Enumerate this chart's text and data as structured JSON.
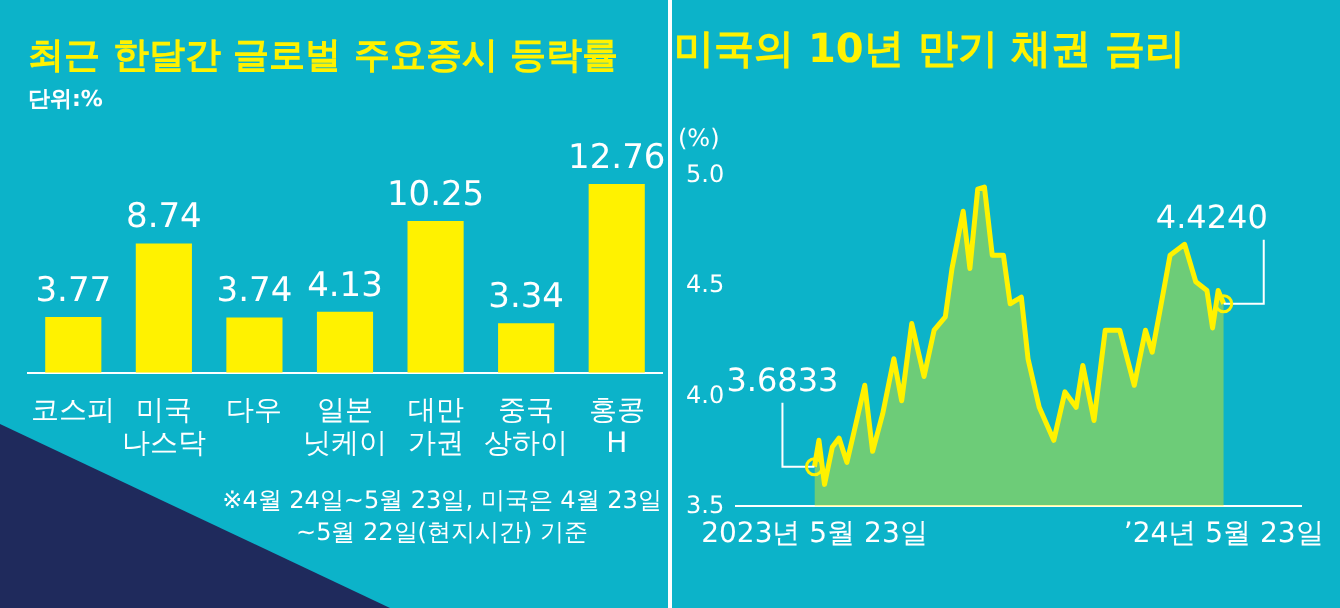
{
  "chart_data": [
    {
      "type": "bar",
      "title": "최근 한달간 글로벌 주요증시 등락률",
      "subtitle": "단위:%",
      "categories": [
        "코스피",
        "미국 나스닥",
        "다우",
        "일본 닛케이",
        "대만 가권",
        "중국 상하이",
        "홍콩 H"
      ],
      "values": [
        3.77,
        8.74,
        3.74,
        4.13,
        10.25,
        3.34,
        12.76
      ],
      "color": "#fff200",
      "data_labels": true,
      "annotations": [
        "※4월 24일~5월 23일, 미국은 4월 23일~5월 22일(현지시간) 기준"
      ]
    },
    {
      "type": "area",
      "title": "미국의 10년 만기 채권 금리",
      "ylabel": "(%)",
      "color": "#fff200",
      "marker": "none",
      "grid": false,
      "xlim": [
        "2023-03-14",
        "2024-07-31"
      ],
      "xticks": [
        {
          "value": "2023-05-23",
          "label": "2023년 5월 23일"
        },
        {
          "value": "2024-05-23",
          "label": "’24년 5월 23일"
        }
      ],
      "ylim": [
        3.5,
        5.0
      ],
      "yticks": [
        {
          "value": 3.5,
          "label": "3.5"
        },
        {
          "value": 4,
          "label": "4.0"
        },
        {
          "value": 4.5,
          "label": "4.5"
        },
        {
          "value": 5,
          "label": "5.0"
        }
      ],
      "x": [
        "2023-05-23",
        "2023-05-27",
        "2023-06-01",
        "2023-06-08",
        "2023-06-14",
        "2023-06-21",
        "2023-06-27",
        "2023-07-07",
        "2023-07-14",
        "2023-07-23",
        "2023-08-02",
        "2023-08-09",
        "2023-08-18",
        "2023-08-29",
        "2023-09-07",
        "2023-09-17",
        "2023-09-23",
        "2023-10-03",
        "2023-10-09",
        "2023-10-16",
        "2023-10-22",
        "2023-10-29",
        "2023-11-08",
        "2023-11-14",
        "2023-11-24",
        "2023-11-30",
        "2023-12-10",
        "2023-12-23",
        "2024-01-02",
        "2024-01-12",
        "2024-01-18",
        "2024-01-28",
        "2024-02-07",
        "2024-02-20",
        "2024-03-04",
        "2024-03-14",
        "2024-03-20",
        "2024-03-27",
        "2024-04-05",
        "2024-04-18",
        "2024-04-28",
        "2024-05-08",
        "2024-05-13",
        "2024-05-18",
        "2024-05-23"
      ],
      "values": [
        3.68,
        3.8,
        3.6,
        3.77,
        3.81,
        3.7,
        3.83,
        4.05,
        3.75,
        3.92,
        4.17,
        3.98,
        4.33,
        4.09,
        4.3,
        4.36,
        4.58,
        4.84,
        4.58,
        4.94,
        4.95,
        4.64,
        4.64,
        4.42,
        4.45,
        4.17,
        3.95,
        3.8,
        4.02,
        3.95,
        4.14,
        3.89,
        4.3,
        4.3,
        4.05,
        4.3,
        4.2,
        4.39,
        4.64,
        4.69,
        4.52,
        4.48,
        4.31,
        4.48,
        4.42
      ],
      "annotations": [
        {
          "text": "3.6833",
          "x": "2023-05-23",
          "y": 3.68
        },
        {
          "text": "4.4240",
          "x": "2024-05-23",
          "y": 4.42
        }
      ]
    }
  ]
}
